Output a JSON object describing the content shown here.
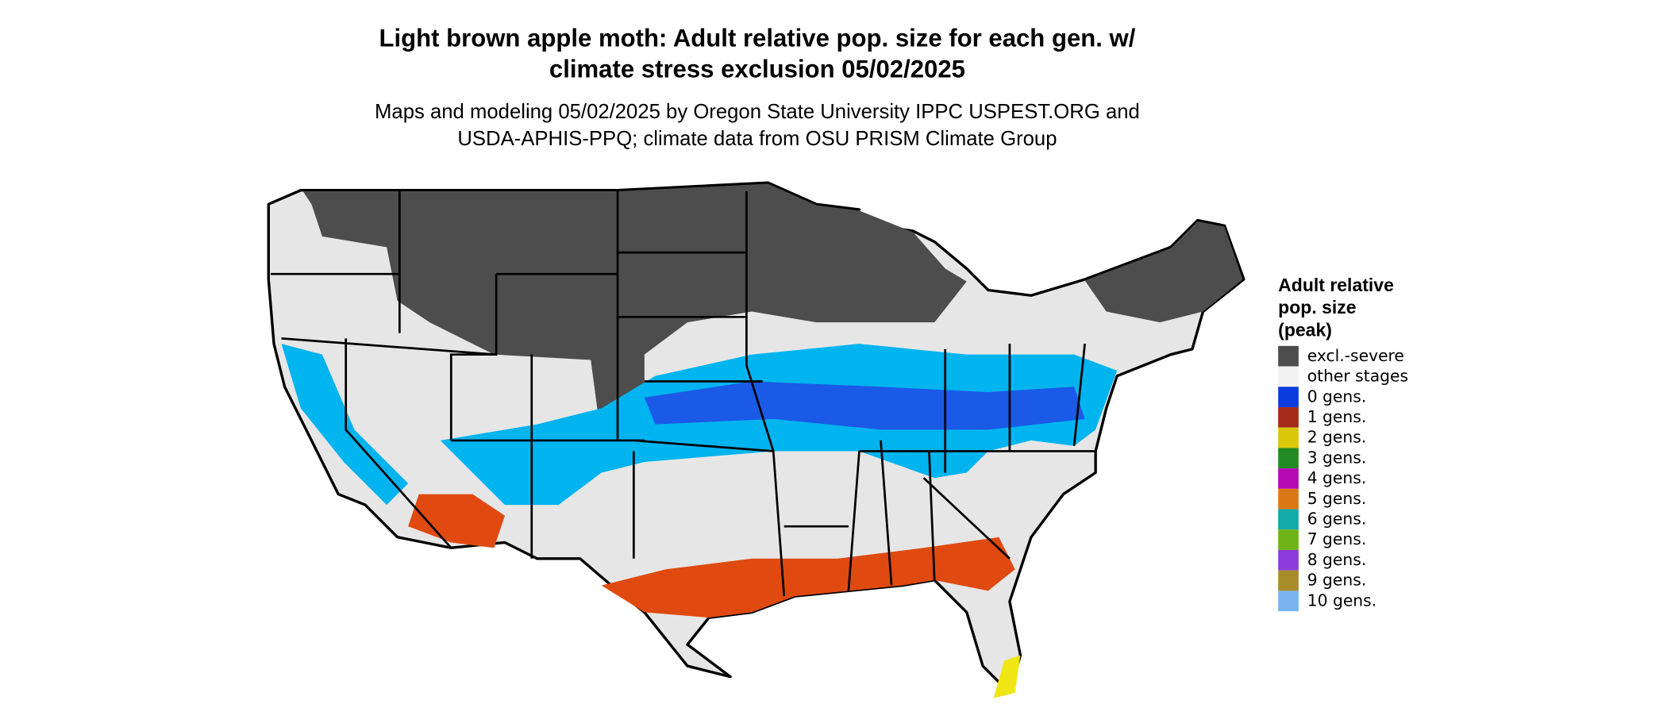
{
  "title_lines": [
    "Light brown apple moth: Adult relative pop. size for each gen. w/",
    "climate stress exclusion 05/02/2025"
  ],
  "subtitle_lines": [
    "Maps and modeling 05/02/2025 by Oregon State University IPPC USPEST.ORG and",
    "USDA-APHIS-PPQ; climate data from OSU PRISM Climate Group"
  ],
  "legend": {
    "title_lines": [
      "Adult relative",
      "pop. size",
      "(peak)"
    ],
    "items": [
      {
        "label": "excl.-severe",
        "color": "#4d4d4d"
      },
      {
        "label": "other stages",
        "color": "#f2f2f2"
      },
      {
        "label": "0 gens.",
        "color": "#0a3bdc"
      },
      {
        "label": "1 gens.",
        "color": "#a52a1a"
      },
      {
        "label": "2 gens.",
        "color": "#dcc80a"
      },
      {
        "label": "3 gens.",
        "color": "#228b22"
      },
      {
        "label": "4 gens.",
        "color": "#b40ab4"
      },
      {
        "label": "5 gens.",
        "color": "#dc7814"
      },
      {
        "label": "6 gens.",
        "color": "#14aaaa"
      },
      {
        "label": "7 gens.",
        "color": "#6eb414"
      },
      {
        "label": "8 gens.",
        "color": "#8c3cdc"
      },
      {
        "label": "9 gens.",
        "color": "#a88c2a"
      },
      {
        "label": "10 gens.",
        "color": "#78b4f0"
      }
    ]
  }
}
